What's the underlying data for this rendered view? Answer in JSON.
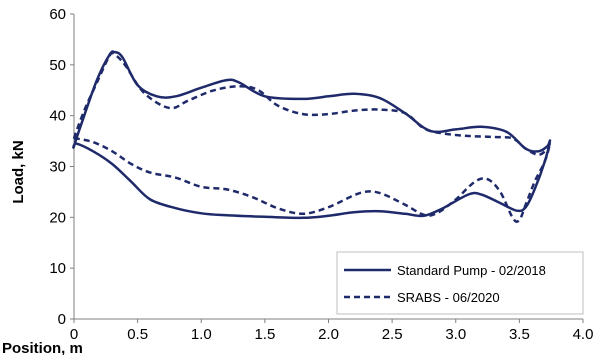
{
  "chart_data": {
    "type": "line",
    "title": "",
    "xlabel": "Position, m",
    "ylabel": "Load, kN",
    "xlim": [
      0,
      4.0
    ],
    "ylim": [
      0,
      60
    ],
    "x_ticks": [
      "0",
      "0.5",
      "1.0",
      "1.5",
      "2.0",
      "2.5",
      "3.0",
      "3.5",
      "4.0"
    ],
    "y_ticks": [
      "0",
      "10",
      "20",
      "30",
      "40",
      "50",
      "60"
    ],
    "grid": false,
    "legend_position": "bottom-right",
    "series": [
      {
        "name": "Standard Pump - 02/2018",
        "color": "#1f2a6b",
        "style": "solid",
        "points": [
          [
            0.0,
            34.0
          ],
          [
            0.08,
            40.0
          ],
          [
            0.18,
            47.0
          ],
          [
            0.28,
            52.0
          ],
          [
            0.32,
            52.5
          ],
          [
            0.38,
            51.5
          ],
          [
            0.5,
            46.0
          ],
          [
            0.65,
            43.8
          ],
          [
            0.8,
            43.8
          ],
          [
            1.0,
            45.5
          ],
          [
            1.2,
            47.0
          ],
          [
            1.3,
            46.5
          ],
          [
            1.5,
            43.8
          ],
          [
            1.8,
            43.3
          ],
          [
            2.0,
            43.8
          ],
          [
            2.2,
            44.3
          ],
          [
            2.4,
            43.5
          ],
          [
            2.6,
            40.5
          ],
          [
            2.8,
            37.0
          ],
          [
            3.0,
            37.3
          ],
          [
            3.2,
            37.8
          ],
          [
            3.4,
            36.8
          ],
          [
            3.55,
            33.5
          ],
          [
            3.65,
            33.0
          ],
          [
            3.72,
            34.0
          ],
          [
            3.74,
            35.0
          ],
          [
            3.7,
            31.0
          ],
          [
            3.62,
            25.5
          ],
          [
            3.55,
            22.0
          ],
          [
            3.48,
            21.3
          ],
          [
            3.35,
            22.8
          ],
          [
            3.2,
            24.5
          ],
          [
            3.1,
            24.5
          ],
          [
            2.9,
            21.8
          ],
          [
            2.75,
            20.3
          ],
          [
            2.6,
            20.7
          ],
          [
            2.4,
            21.2
          ],
          [
            2.2,
            21.0
          ],
          [
            2.0,
            20.3
          ],
          [
            1.8,
            19.9
          ],
          [
            1.5,
            20.1
          ],
          [
            1.2,
            20.4
          ],
          [
            1.0,
            20.8
          ],
          [
            0.8,
            21.8
          ],
          [
            0.6,
            23.5
          ],
          [
            0.45,
            27.0
          ],
          [
            0.3,
            30.5
          ],
          [
            0.15,
            33.0
          ],
          [
            0.02,
            34.5
          ]
        ]
      },
      {
        "name": "SRABS - 06/2020",
        "color": "#1f2a6b",
        "style": "dashed",
        "points": [
          [
            0.0,
            35.5
          ],
          [
            0.08,
            41.0
          ],
          [
            0.18,
            46.5
          ],
          [
            0.28,
            51.8
          ],
          [
            0.32,
            52.0
          ],
          [
            0.4,
            50.0
          ],
          [
            0.55,
            44.5
          ],
          [
            0.75,
            41.5
          ],
          [
            0.9,
            43.0
          ],
          [
            1.1,
            45.0
          ],
          [
            1.3,
            45.8
          ],
          [
            1.45,
            45.0
          ],
          [
            1.6,
            42.0
          ],
          [
            1.8,
            40.3
          ],
          [
            2.0,
            40.3
          ],
          [
            2.2,
            41.0
          ],
          [
            2.4,
            41.2
          ],
          [
            2.6,
            40.5
          ],
          [
            2.75,
            37.5
          ],
          [
            2.9,
            36.5
          ],
          [
            3.1,
            36.0
          ],
          [
            3.3,
            35.8
          ],
          [
            3.45,
            35.5
          ],
          [
            3.55,
            33.5
          ],
          [
            3.65,
            32.3
          ],
          [
            3.72,
            33.5
          ],
          [
            3.74,
            34.5
          ],
          [
            3.7,
            31.0
          ],
          [
            3.62,
            27.0
          ],
          [
            3.55,
            22.5
          ],
          [
            3.5,
            19.5
          ],
          [
            3.45,
            19.8
          ],
          [
            3.35,
            25.0
          ],
          [
            3.25,
            27.5
          ],
          [
            3.15,
            27.0
          ],
          [
            3.0,
            23.5
          ],
          [
            2.85,
            20.8
          ],
          [
            2.75,
            20.5
          ],
          [
            2.6,
            22.5
          ],
          [
            2.4,
            24.8
          ],
          [
            2.25,
            24.8
          ],
          [
            2.0,
            22.0
          ],
          [
            1.8,
            20.7
          ],
          [
            1.6,
            21.8
          ],
          [
            1.4,
            24.0
          ],
          [
            1.2,
            25.5
          ],
          [
            1.0,
            26.0
          ],
          [
            0.8,
            27.8
          ],
          [
            0.6,
            28.8
          ],
          [
            0.45,
            30.5
          ],
          [
            0.3,
            33.0
          ],
          [
            0.15,
            34.8
          ],
          [
            0.02,
            35.5
          ]
        ]
      }
    ]
  }
}
